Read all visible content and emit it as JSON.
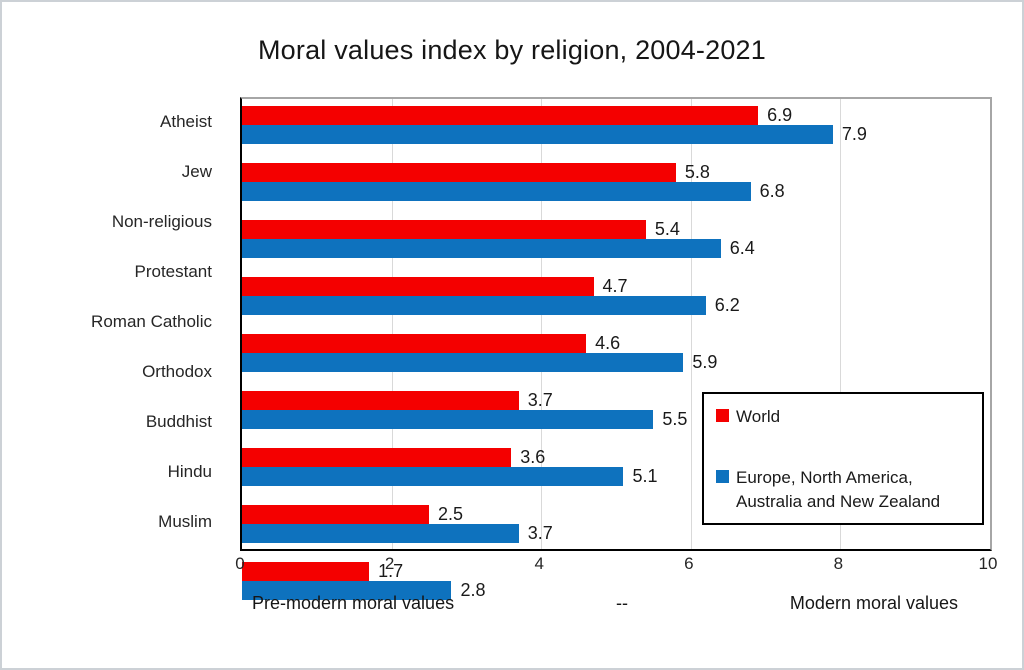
{
  "title": "Moral values index by religion, 2004-2021",
  "colors": {
    "world_red": "#f40000",
    "europe_blue": "#0e72be",
    "gridline": "#d9d9d9",
    "axis_black": "#000000",
    "plot_border_gray": "#a6a6a6"
  },
  "chart_data": {
    "type": "bar",
    "orientation": "horizontal",
    "title": "Moral values index by religion, 2004-2021",
    "categories": [
      "Atheist",
      "Jew",
      "Non-religious",
      "Protestant",
      "Roman Catholic",
      "Orthodox",
      "Buddhist",
      "Hindu",
      "Muslim"
    ],
    "series": [
      {
        "name": "World",
        "color": "#f40000",
        "values": [
          6.9,
          5.8,
          5.4,
          4.7,
          4.6,
          3.7,
          3.6,
          2.5,
          1.7
        ]
      },
      {
        "name": "Europe, North America, Australia and New Zealand",
        "color": "#0e72be",
        "values": [
          7.9,
          6.8,
          6.4,
          6.2,
          5.9,
          5.5,
          5.1,
          3.7,
          2.8
        ]
      }
    ],
    "xlim": [
      0,
      10
    ],
    "x_ticks": [
      "0",
      "2",
      "4",
      "6",
      "8",
      "10"
    ],
    "grid": "vertical",
    "data_labels": true,
    "legend_position": "inside-bottom-right"
  },
  "axis_caption": {
    "left": "Pre-modern moral values",
    "middle": "--",
    "right": "Modern moral values"
  },
  "legend": {
    "entries": [
      {
        "label": "World",
        "color": "#f40000"
      },
      {
        "label": "Europe, North America,\nAustralia and New Zealand",
        "color": "#0e72be"
      }
    ]
  }
}
